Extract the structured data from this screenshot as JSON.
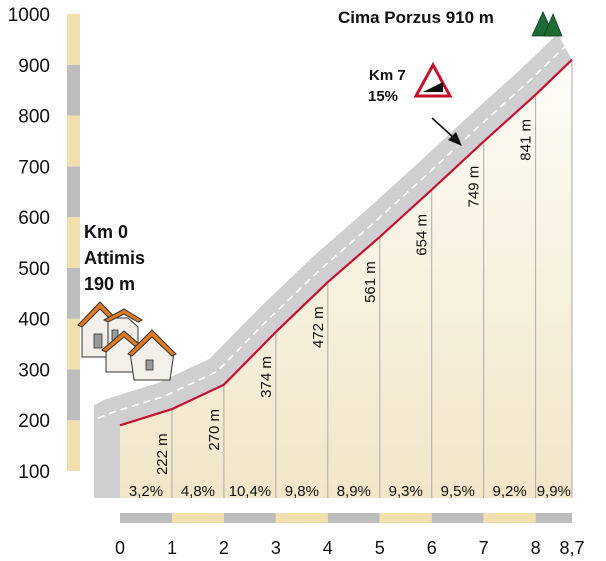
{
  "chart_data": {
    "type": "area",
    "title": "Cima Porzus 910 m",
    "start_label": {
      "km": "Km 0",
      "place": "Attimis",
      "altitude": "190 m"
    },
    "summit_label": "Cima Porzus 910 m",
    "steepest": {
      "km": "Km 7",
      "grade": "15%"
    },
    "x": [
      0,
      1,
      2,
      3,
      4,
      5,
      6,
      7,
      8,
      8.7
    ],
    "y": [
      190,
      222,
      270,
      374,
      472,
      561,
      654,
      749,
      841,
      910
    ],
    "altitude_labels": [
      "222 m",
      "270 m",
      "374 m",
      "472 m",
      "561 m",
      "654 m",
      "749 m",
      "841 m"
    ],
    "gradients": [
      "3,2%",
      "4,8%",
      "10,4%",
      "9,8%",
      "8,9%",
      "9,3%",
      "9,5%",
      "9,2%",
      "9,9%"
    ],
    "x_ticks": [
      "0",
      "1",
      "2",
      "3",
      "4",
      "5",
      "6",
      "7",
      "8",
      "8,7"
    ],
    "y_ticks": [
      "100",
      "200",
      "300",
      "400",
      "500",
      "600",
      "700",
      "800",
      "900",
      "1000"
    ],
    "xlim": [
      0,
      8.7
    ],
    "ylim": [
      100,
      1000
    ],
    "colors": {
      "profile_line": "#c8102e",
      "road": "#cfcfd2",
      "fill_light": "#fbf8ee",
      "fill_dark": "#efe3c2",
      "scale_tan": "#f1dfae",
      "scale_gray": "#bdbdbd",
      "summit_trees": "#1f6b35",
      "house_roof": "#e07a1f"
    }
  }
}
